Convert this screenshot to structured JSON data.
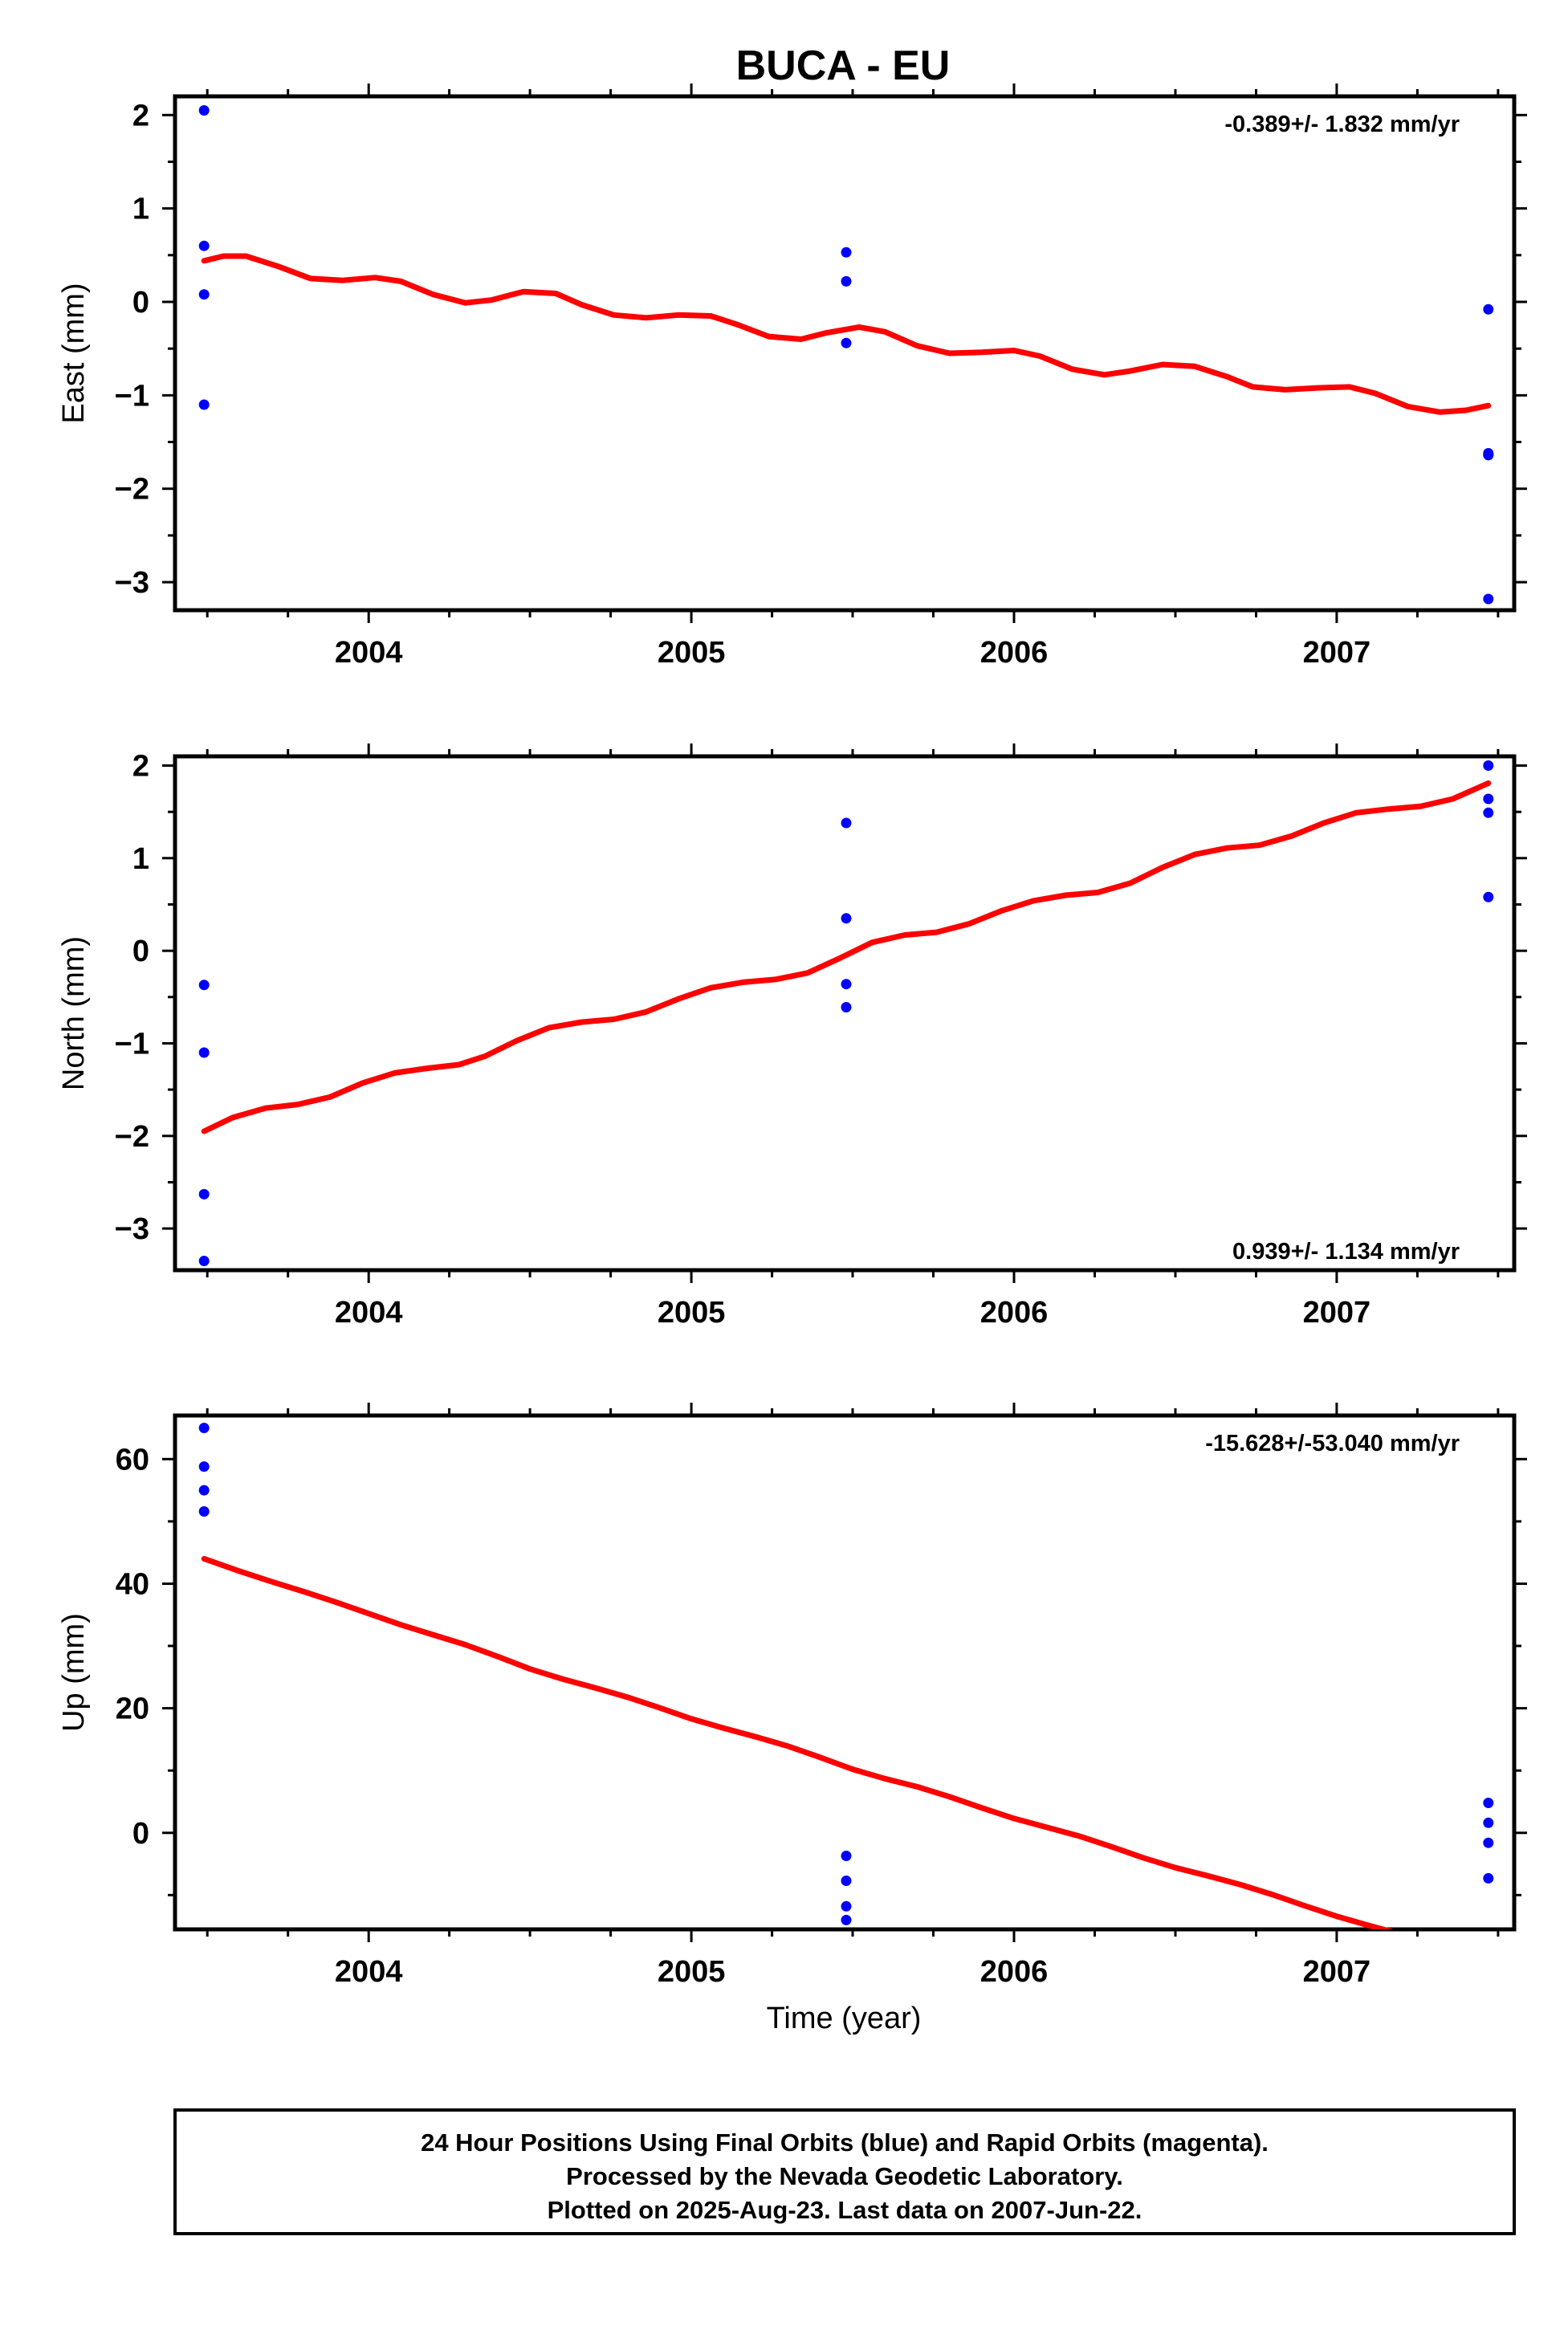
{
  "chart_data": {
    "type": "scatter",
    "title": "BUCA - EU",
    "xlabel": "Time (year)",
    "xlim": [
      2003.4,
      2007.55
    ],
    "xticks_major": [
      2004,
      2005,
      2006,
      2007
    ],
    "xtick_labels": [
      "2004",
      "2005",
      "2006",
      "2007"
    ],
    "legend": "none",
    "panels": [
      {
        "key": "east",
        "ylabel": "East (mm)",
        "ylim": [
          -3.3,
          2.2
        ],
        "yticks": [
          -3,
          -2,
          -1,
          0,
          1,
          2
        ],
        "ytick_labels": [
          "−3",
          "−2",
          "−1",
          "0",
          "1",
          "2"
        ],
        "rate_text": "-0.389+/- 1.832 mm/yr",
        "rate_position": "top-right",
        "points": {
          "name": "Final Orbits",
          "color": "#0000ff",
          "x": [
            2003.49,
            2003.49,
            2003.49,
            2003.49,
            2005.48,
            2005.48,
            2005.48,
            2007.47,
            2007.47,
            2007.47,
            2007.47,
            2007.47
          ],
          "y": [
            2.05,
            0.6,
            0.08,
            -1.1,
            0.53,
            0.22,
            -0.44,
            -0.08,
            -1.62,
            -1.64,
            -1.64,
            -3.18
          ]
        },
        "model": {
          "color": "#ff0000",
          "x": [
            2003.49,
            2003.55,
            2003.62,
            2003.72,
            2003.82,
            2003.92,
            2004.02,
            2004.1,
            2004.2,
            2004.3,
            2004.38,
            2004.48,
            2004.58,
            2004.66,
            2004.76,
            2004.86,
            2004.96,
            2005.06,
            2005.14,
            2005.24,
            2005.34,
            2005.42,
            2005.52,
            2005.6,
            2005.7,
            2005.8,
            2005.9,
            2006.0,
            2006.08,
            2006.18,
            2006.28,
            2006.36,
            2006.46,
            2006.56,
            2006.66,
            2006.74,
            2006.84,
            2006.94,
            2007.04,
            2007.12,
            2007.22,
            2007.32,
            2007.4,
            2007.47
          ],
          "y": [
            0.44,
            0.49,
            0.49,
            0.38,
            0.25,
            0.23,
            0.26,
            0.22,
            0.08,
            -0.01,
            0.02,
            0.11,
            0.09,
            -0.03,
            -0.14,
            -0.17,
            -0.14,
            -0.15,
            -0.24,
            -0.37,
            -0.4,
            -0.33,
            -0.27,
            -0.32,
            -0.47,
            -0.55,
            -0.54,
            -0.52,
            -0.58,
            -0.72,
            -0.78,
            -0.74,
            -0.67,
            -0.69,
            -0.8,
            -0.91,
            -0.94,
            -0.92,
            -0.91,
            -0.98,
            -1.12,
            -1.18,
            -1.16,
            -1.11
          ]
        }
      },
      {
        "key": "north",
        "ylabel": "North (mm)",
        "ylim": [
          -3.45,
          2.1
        ],
        "yticks": [
          -3,
          -2,
          -1,
          0,
          1,
          2
        ],
        "ytick_labels": [
          "−3",
          "−2",
          "−1",
          "0",
          "1",
          "2"
        ],
        "rate_text": "0.939+/- 1.134 mm/yr",
        "rate_position": "bottom-right",
        "points": {
          "name": "Final Orbits",
          "color": "#0000ff",
          "x": [
            2003.49,
            2003.49,
            2003.49,
            2003.49,
            2005.48,
            2005.48,
            2005.48,
            2005.48,
            2007.47,
            2007.47,
            2007.47,
            2007.47
          ],
          "y": [
            -0.37,
            -1.1,
            -2.63,
            -3.35,
            1.38,
            0.35,
            -0.36,
            -0.61,
            2.0,
            1.64,
            1.49,
            0.58
          ]
        },
        "model": {
          "color": "#ff0000",
          "x": [
            2003.49,
            2003.58,
            2003.68,
            2003.78,
            2003.88,
            2003.98,
            2004.08,
            2004.18,
            2004.28,
            2004.36,
            2004.46,
            2004.56,
            2004.66,
            2004.76,
            2004.86,
            2004.96,
            2005.06,
            2005.16,
            2005.26,
            2005.36,
            2005.46,
            2005.56,
            2005.66,
            2005.76,
            2005.86,
            2005.96,
            2006.06,
            2006.16,
            2006.26,
            2006.36,
            2006.46,
            2006.56,
            2006.66,
            2006.76,
            2006.86,
            2006.96,
            2007.06,
            2007.16,
            2007.26,
            2007.36,
            2007.47
          ],
          "y": [
            -1.95,
            -1.8,
            -1.7,
            -1.66,
            -1.58,
            -1.43,
            -1.32,
            -1.27,
            -1.23,
            -1.14,
            -0.97,
            -0.83,
            -0.77,
            -0.74,
            -0.66,
            -0.52,
            -0.4,
            -0.34,
            -0.31,
            -0.24,
            -0.08,
            0.09,
            0.17,
            0.2,
            0.29,
            0.43,
            0.54,
            0.6,
            0.63,
            0.73,
            0.9,
            1.04,
            1.11,
            1.14,
            1.24,
            1.38,
            1.49,
            1.53,
            1.56,
            1.64,
            1.81
          ]
        }
      },
      {
        "key": "up",
        "ylabel": "Up (mm)",
        "ylim": [
          -15.5,
          67
        ],
        "yticks": [
          0,
          20,
          40,
          60
        ],
        "ytick_labels": [
          "0",
          "20",
          "40",
          "60"
        ],
        "rate_text": "-15.628+/-53.040 mm/yr",
        "rate_position": "top-right",
        "points": {
          "name": "Final Orbits",
          "color": "#0000ff",
          "x": [
            2003.49,
            2003.49,
            2003.49,
            2003.49,
            2005.48,
            2005.48,
            2005.48,
            2005.48,
            2007.47,
            2007.47,
            2007.47,
            2007.47
          ],
          "y": [
            65.0,
            58.8,
            55.0,
            51.6,
            -3.7,
            -7.7,
            -11.8,
            -14.0,
            4.8,
            1.6,
            -1.6,
            -7.3
          ]
        },
        "model": {
          "color": "#ff0000",
          "x": [
            2003.49,
            2003.6,
            2003.7,
            2003.8,
            2003.9,
            2004.0,
            2004.1,
            2004.2,
            2004.3,
            2004.4,
            2004.5,
            2004.6,
            2004.7,
            2004.8,
            2004.9,
            2005.0,
            2005.1,
            2005.2,
            2005.3,
            2005.4,
            2005.5,
            2005.6,
            2005.7,
            2005.8,
            2005.9,
            2006.0,
            2006.1,
            2006.2,
            2006.3,
            2006.4,
            2006.5,
            2006.6,
            2006.7,
            2006.8,
            2006.9,
            2007.0,
            2007.1,
            2007.2,
            2007.29
          ],
          "y": [
            44.0,
            42.0,
            40.3,
            38.7,
            37.0,
            35.2,
            33.4,
            31.8,
            30.2,
            28.3,
            26.3,
            24.7,
            23.3,
            21.8,
            20.1,
            18.3,
            16.8,
            15.4,
            13.9,
            12.1,
            10.2,
            8.7,
            7.4,
            5.8,
            4.0,
            2.3,
            0.9,
            -0.5,
            -2.2,
            -4.0,
            -5.6,
            -6.9,
            -8.3,
            -9.9,
            -11.7,
            -13.4,
            -14.9,
            -16.3,
            -17.4
          ]
        }
      }
    ]
  },
  "caption": {
    "line1": "24 Hour Positions Using Final Orbits (blue) and Rapid Orbits (magenta).",
    "line2": "Processed by the Nevada Geodetic Laboratory.",
    "line3": "Plotted on 2025-Aug-23. Last data on 2007-Jun-22."
  }
}
